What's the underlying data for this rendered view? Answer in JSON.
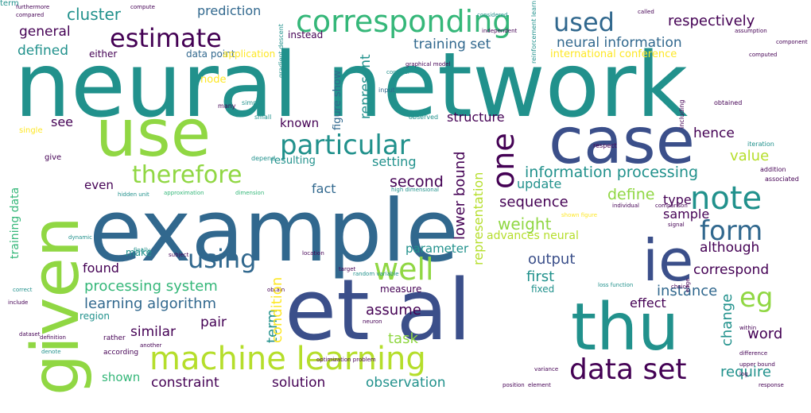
{
  "palette": {
    "dark_purple": "#440154",
    "indigo": "#3b4f8a",
    "blue": "#31688e",
    "teal": "#21918c",
    "green": "#35b779",
    "lime": "#90d743",
    "yellow": "#fde725",
    "light_lime": "#b5de2b"
  },
  "words": [
    {
      "text": "neural network",
      "color": "teal"
    },
    {
      "text": "example",
      "color": "blue"
    },
    {
      "text": "given",
      "color": "lime"
    },
    {
      "text": "et al",
      "color": "indigo"
    },
    {
      "text": "use",
      "color": "lime"
    },
    {
      "text": "case",
      "color": "indigo"
    },
    {
      "text": "ie",
      "color": "indigo"
    },
    {
      "text": "thu",
      "color": "teal"
    },
    {
      "text": "corresponding",
      "color": "green"
    },
    {
      "text": "estimate",
      "color": "dark_purple"
    },
    {
      "text": "used",
      "color": "blue"
    },
    {
      "text": "respectively",
      "color": "dark_purple"
    },
    {
      "text": "therefore",
      "color": "lime"
    },
    {
      "text": "particular",
      "color": "teal"
    },
    {
      "text": "one",
      "color": "dark_purple"
    },
    {
      "text": "note",
      "color": "teal"
    },
    {
      "text": "form",
      "color": "blue"
    },
    {
      "text": "eg",
      "color": "lime"
    },
    {
      "text": "machine learning",
      "color": "light_lime"
    },
    {
      "text": "data set",
      "color": "dark_purple"
    },
    {
      "text": "using",
      "color": "blue"
    },
    {
      "text": "well",
      "color": "lime"
    },
    {
      "text": "cluster",
      "color": "teal"
    },
    {
      "text": "prediction",
      "color": "blue"
    },
    {
      "text": "general",
      "color": "dark_purple"
    },
    {
      "text": "defined",
      "color": "teal"
    },
    {
      "text": "training set",
      "color": "blue"
    },
    {
      "text": "neural information",
      "color": "blue"
    },
    {
      "text": "international conference",
      "color": "yellow"
    },
    {
      "text": "represent",
      "color": "teal"
    },
    {
      "text": "figure show",
      "color": "blue"
    },
    {
      "text": "known",
      "color": "dark_purple"
    },
    {
      "text": "see",
      "color": "dark_purple"
    },
    {
      "text": "node",
      "color": "yellow"
    },
    {
      "text": "structure",
      "color": "dark_purple"
    },
    {
      "text": "setting",
      "color": "teal"
    },
    {
      "text": "hence",
      "color": "dark_purple"
    },
    {
      "text": "value",
      "color": "light_lime"
    },
    {
      "text": "information processing",
      "color": "teal"
    },
    {
      "text": "second",
      "color": "dark_purple"
    },
    {
      "text": "even",
      "color": "dark_purple"
    },
    {
      "text": "fact",
      "color": "blue"
    },
    {
      "text": "update",
      "color": "teal"
    },
    {
      "text": "define",
      "color": "lime"
    },
    {
      "text": "type",
      "color": "dark_purple"
    },
    {
      "text": "sequence",
      "color": "dark_purple"
    },
    {
      "text": "lower bound",
      "color": "dark_purple"
    },
    {
      "text": "representation",
      "color": "light_lime"
    },
    {
      "text": "weight",
      "color": "lime"
    },
    {
      "text": "sample",
      "color": "dark_purple"
    },
    {
      "text": "advances neural",
      "color": "light_lime"
    },
    {
      "text": "parameter",
      "color": "teal"
    },
    {
      "text": "although",
      "color": "dark_purple"
    },
    {
      "text": "found",
      "color": "dark_purple"
    },
    {
      "text": "output",
      "color": "indigo"
    },
    {
      "text": "correspond",
      "color": "dark_purple"
    },
    {
      "text": "processing system",
      "color": "green"
    },
    {
      "text": "first",
      "color": "teal"
    },
    {
      "text": "instance",
      "color": "blue"
    },
    {
      "text": "learning algorithm",
      "color": "blue"
    },
    {
      "text": "effect",
      "color": "dark_purple"
    },
    {
      "text": "similar",
      "color": "dark_purple"
    },
    {
      "text": "pair",
      "color": "dark_purple"
    },
    {
      "text": "assume",
      "color": "dark_purple"
    },
    {
      "text": "term",
      "color": "teal"
    },
    {
      "text": "task",
      "color": "lime"
    },
    {
      "text": "change",
      "color": "teal"
    },
    {
      "text": "word",
      "color": "dark_purple"
    },
    {
      "text": "require",
      "color": "teal"
    },
    {
      "text": "shown",
      "color": "green"
    },
    {
      "text": "constraint",
      "color": "dark_purple"
    },
    {
      "text": "solution",
      "color": "dark_purple"
    },
    {
      "text": "observation",
      "color": "teal"
    },
    {
      "text": "training data",
      "color": "green"
    },
    {
      "text": "either",
      "color": "dark_purple"
    },
    {
      "text": "data point",
      "color": "blue"
    },
    {
      "text": "application",
      "color": "yellow"
    },
    {
      "text": "resulting",
      "color": "teal"
    },
    {
      "text": "make",
      "color": "teal"
    },
    {
      "text": "region",
      "color": "teal"
    },
    {
      "text": "measure",
      "color": "dark_purple"
    },
    {
      "text": "fixed",
      "color": "teal"
    },
    {
      "text": "instead",
      "color": "dark_purple"
    },
    {
      "text": "rather",
      "color": "dark_purple"
    },
    {
      "text": "according",
      "color": "dark_purple"
    },
    {
      "text": "furthermore",
      "color": "dark_purple"
    },
    {
      "text": "compared",
      "color": "dark_purple"
    },
    {
      "text": "compute",
      "color": "dark_purple"
    },
    {
      "text": "called",
      "color": "dark_purple"
    },
    {
      "text": "assumption",
      "color": "dark_purple"
    },
    {
      "text": "component",
      "color": "dark_purple"
    },
    {
      "text": "computed",
      "color": "dark_purple"
    },
    {
      "text": "consider",
      "color": "teal"
    },
    {
      "text": "graphical model",
      "color": "dark_purple"
    },
    {
      "text": "independent",
      "color": "dark_purple"
    },
    {
      "text": "considered",
      "color": "teal"
    },
    {
      "text": "single",
      "color": "yellow"
    },
    {
      "text": "give",
      "color": "dark_purple"
    },
    {
      "text": "small",
      "color": "teal"
    },
    {
      "text": "simple",
      "color": "teal"
    },
    {
      "text": "many",
      "color": "dark_purple"
    },
    {
      "text": "depend",
      "color": "teal"
    },
    {
      "text": "input",
      "color": "blue"
    },
    {
      "text": "gradient descent",
      "color": "teal"
    },
    {
      "text": "observed",
      "color": "teal"
    },
    {
      "text": "reinforcement learning",
      "color": "teal"
    },
    {
      "text": "respect",
      "color": "dark_purple"
    },
    {
      "text": "including",
      "color": "dark_purple"
    },
    {
      "text": "obtained",
      "color": "dark_purple"
    },
    {
      "text": "iteration",
      "color": "teal"
    },
    {
      "text": "addition",
      "color": "dark_purple"
    },
    {
      "text": "associated",
      "color": "dark_purple"
    },
    {
      "text": "hidden unit",
      "color": "teal"
    },
    {
      "text": "approximation",
      "color": "green"
    },
    {
      "text": "dimension",
      "color": "green"
    },
    {
      "text": "high dimensional",
      "color": "teal"
    },
    {
      "text": "shown figure",
      "color": "yellow"
    },
    {
      "text": "individual",
      "color": "dark_purple"
    },
    {
      "text": "comparison",
      "color": "dark_purple"
    },
    {
      "text": "signal",
      "color": "dark_purple"
    },
    {
      "text": "dynamic",
      "color": "teal"
    },
    {
      "text": "finally",
      "color": "teal"
    },
    {
      "text": "subject",
      "color": "dark_purple"
    },
    {
      "text": "location",
      "color": "dark_purple"
    },
    {
      "text": "target",
      "color": "dark_purple"
    },
    {
      "text": "correct",
      "color": "teal"
    },
    {
      "text": "include",
      "color": "dark_purple"
    },
    {
      "text": "obtain",
      "color": "dark_purple"
    },
    {
      "text": "random variable",
      "color": "teal"
    },
    {
      "text": "loss function",
      "color": "teal"
    },
    {
      "text": "choice",
      "color": "dark_purple"
    },
    {
      "text": "edge",
      "color": "dark_purple"
    },
    {
      "text": "dataset",
      "color": "dark_purple"
    },
    {
      "text": "definition",
      "color": "dark_purple"
    },
    {
      "text": "denote",
      "color": "teal"
    },
    {
      "text": "another",
      "color": "dark_purple"
    },
    {
      "text": "optimization problem",
      "color": "dark_purple"
    },
    {
      "text": "within",
      "color": "dark_purple"
    },
    {
      "text": "difference",
      "color": "dark_purple"
    },
    {
      "text": "upper bound",
      "color": "dark_purple"
    },
    {
      "text": "log",
      "color": "dark_purple"
    },
    {
      "text": "variance",
      "color": "dark_purple"
    },
    {
      "text": "position",
      "color": "dark_purple"
    },
    {
      "text": "element",
      "color": "dark_purple"
    },
    {
      "text": "response",
      "color": "dark_purple"
    },
    {
      "text": "neuron",
      "color": "dark_purple"
    },
    {
      "text": "condition",
      "color": "yellow"
    },
    {
      "text": "term",
      "color": "teal"
    }
  ]
}
